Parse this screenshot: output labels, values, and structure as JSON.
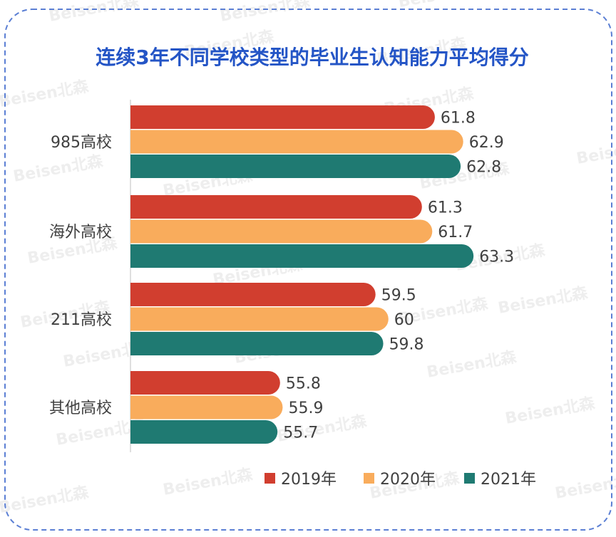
{
  "chart_data": {
    "type": "bar",
    "orientation": "horizontal",
    "title": "连续3年不同学校类型的毕业生认知能力平均得分",
    "categories": [
      "985高校",
      "海外高校",
      "211高校",
      "其他高校"
    ],
    "series": [
      {
        "name": "2019年",
        "color": "#D13E2F",
        "values": [
          61.8,
          61.3,
          59.5,
          55.8
        ]
      },
      {
        "name": "2020年",
        "color": "#F9AC5C",
        "values": [
          62.9,
          61.7,
          60,
          55.9
        ]
      },
      {
        "name": "2021年",
        "color": "#1F7A72",
        "values": [
          62.8,
          63.3,
          59.8,
          55.7
        ]
      }
    ],
    "value_labels": [
      [
        "61.8",
        "61.3",
        "59.5",
        "55.8"
      ],
      [
        "62.9",
        "61.7",
        "60",
        "55.9"
      ],
      [
        "62.8",
        "63.3",
        "59.8",
        "55.7"
      ]
    ],
    "xlim": [
      50,
      64
    ],
    "grid": false,
    "legend_position": "bottom-right",
    "watermark": "Beisen北森",
    "colors": {
      "title": "#2455C6",
      "frame": "#5B7FD4",
      "label_text": "#404040",
      "watermark": "#D9D9D9"
    }
  }
}
